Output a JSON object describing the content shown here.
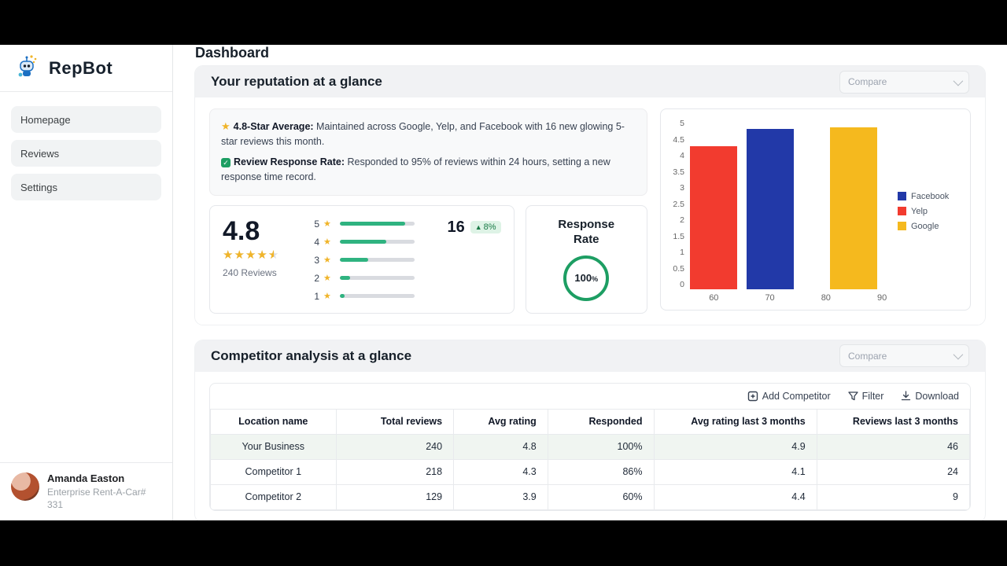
{
  "sidebar": {
    "logo_text": "RepBot",
    "items": [
      {
        "label": "Homepage"
      },
      {
        "label": "Reviews"
      },
      {
        "label": "Settings"
      }
    ],
    "user": {
      "name": "Amanda Easton",
      "org": "Enterprise Rent-A-Car# 331"
    }
  },
  "header": {
    "title": "Dashboard"
  },
  "reputation": {
    "title": "Your reputation at a glance",
    "compare_label": "Compare",
    "highlights": [
      {
        "icon": "star-icon",
        "bold": "4.8-Star Average:",
        "text": " Maintained across Google, Yelp, and Facebook with 16 new glowing 5-star reviews this month."
      },
      {
        "icon": "check-icon",
        "bold": "Review Response Rate:",
        "text": " Responded to 95% of reviews within 24 hours, setting a new response time record."
      }
    ],
    "rating": {
      "average": "4.8",
      "reviews_label": "240 Reviews",
      "new_count": "16",
      "trend": "8%",
      "distribution": [
        {
          "stars": "5",
          "pct": 88
        },
        {
          "stars": "4",
          "pct": 62
        },
        {
          "stars": "3",
          "pct": 38
        },
        {
          "stars": "2",
          "pct": 14
        },
        {
          "stars": "1",
          "pct": 6
        }
      ]
    },
    "response": {
      "title": "Response Rate",
      "value": "100",
      "unit": "%"
    }
  },
  "chart_data": {
    "type": "bar",
    "title": "",
    "xlabel": "",
    "ylabel": "",
    "ylim": [
      0,
      5
    ],
    "yticks": [
      0,
      0.5,
      1,
      1.5,
      2,
      2.5,
      3,
      3.5,
      4,
      4.5,
      5
    ],
    "xticks": [
      60,
      70,
      80,
      90
    ],
    "legend_position": "right",
    "series": [
      {
        "name": "Facebook",
        "color": "#2239a8",
        "x": 70,
        "value": 4.7
      },
      {
        "name": "Yelp",
        "color": "#f23b2f",
        "x": 60,
        "value": 4.2
      },
      {
        "name": "Google",
        "color": "#f5b91e",
        "x": 85,
        "value": 4.75
      }
    ]
  },
  "competitor": {
    "title": "Competitor analysis at a glance",
    "compare_label": "Compare",
    "toolbar": {
      "add": "Add Competitor",
      "filter": "Filter",
      "download": "Download"
    },
    "table": {
      "columns": [
        "Location name",
        "Total reviews",
        "Avg rating",
        "Responded",
        "Avg rating last 3 months",
        "Reviews last 3 months"
      ],
      "rows": [
        [
          "Your Business",
          "240",
          "4.8",
          "100%",
          "4.9",
          "46"
        ],
        [
          "Competitor 1",
          "218",
          "4.3",
          "86%",
          "4.1",
          "24"
        ],
        [
          "Competitor 2",
          "129",
          "3.9",
          "60%",
          "4.4",
          "9"
        ]
      ]
    }
  },
  "colors": {
    "accent_green": "#2fb380",
    "ring_green": "#1d9e63",
    "badge_green_bg": "#def3e6",
    "badge_green_text": "#197a46"
  }
}
